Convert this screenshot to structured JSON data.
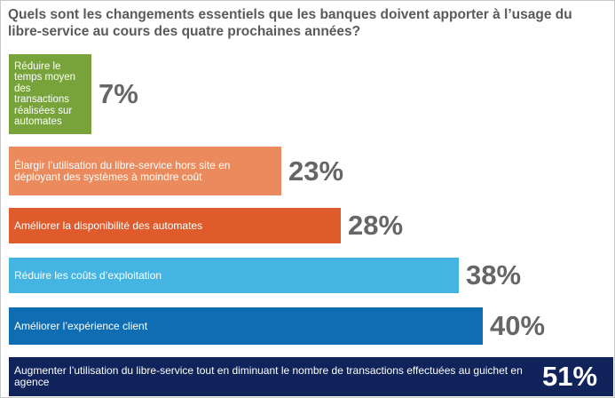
{
  "chart_data": {
    "type": "bar",
    "orientation": "horizontal",
    "title": "Quels sont les changements essentiels que les banques doivent apporter à l’usage du libre-service au cours des quatre prochaines années?",
    "categories": [
      "Réduire le temps moyen des transactions réalisées sur automates",
      "Élargir l’utilisation du libre-service hors site en déployant des systèmes à moindre coût",
      "Améliorer la disponibilité des automates",
      "Réduire les coûts d’exploitation",
      "Améliorer l’expérience client",
      "Augmenter l’utilisation du libre-service tout en diminuant le nombre de transactions  effectuées au guichet en agence"
    ],
    "values": [
      7,
      23,
      28,
      38,
      40,
      51
    ],
    "value_labels": [
      "7%",
      "23%",
      "28%",
      "38%",
      "40%",
      "51%"
    ],
    "colors": [
      "#77a33a",
      "#eb8a5c",
      "#df5b2c",
      "#44b5e3",
      "#0f6eb3",
      "#10235a"
    ],
    "xlim": [
      0,
      51
    ],
    "xlabel": "",
    "ylabel": ""
  }
}
